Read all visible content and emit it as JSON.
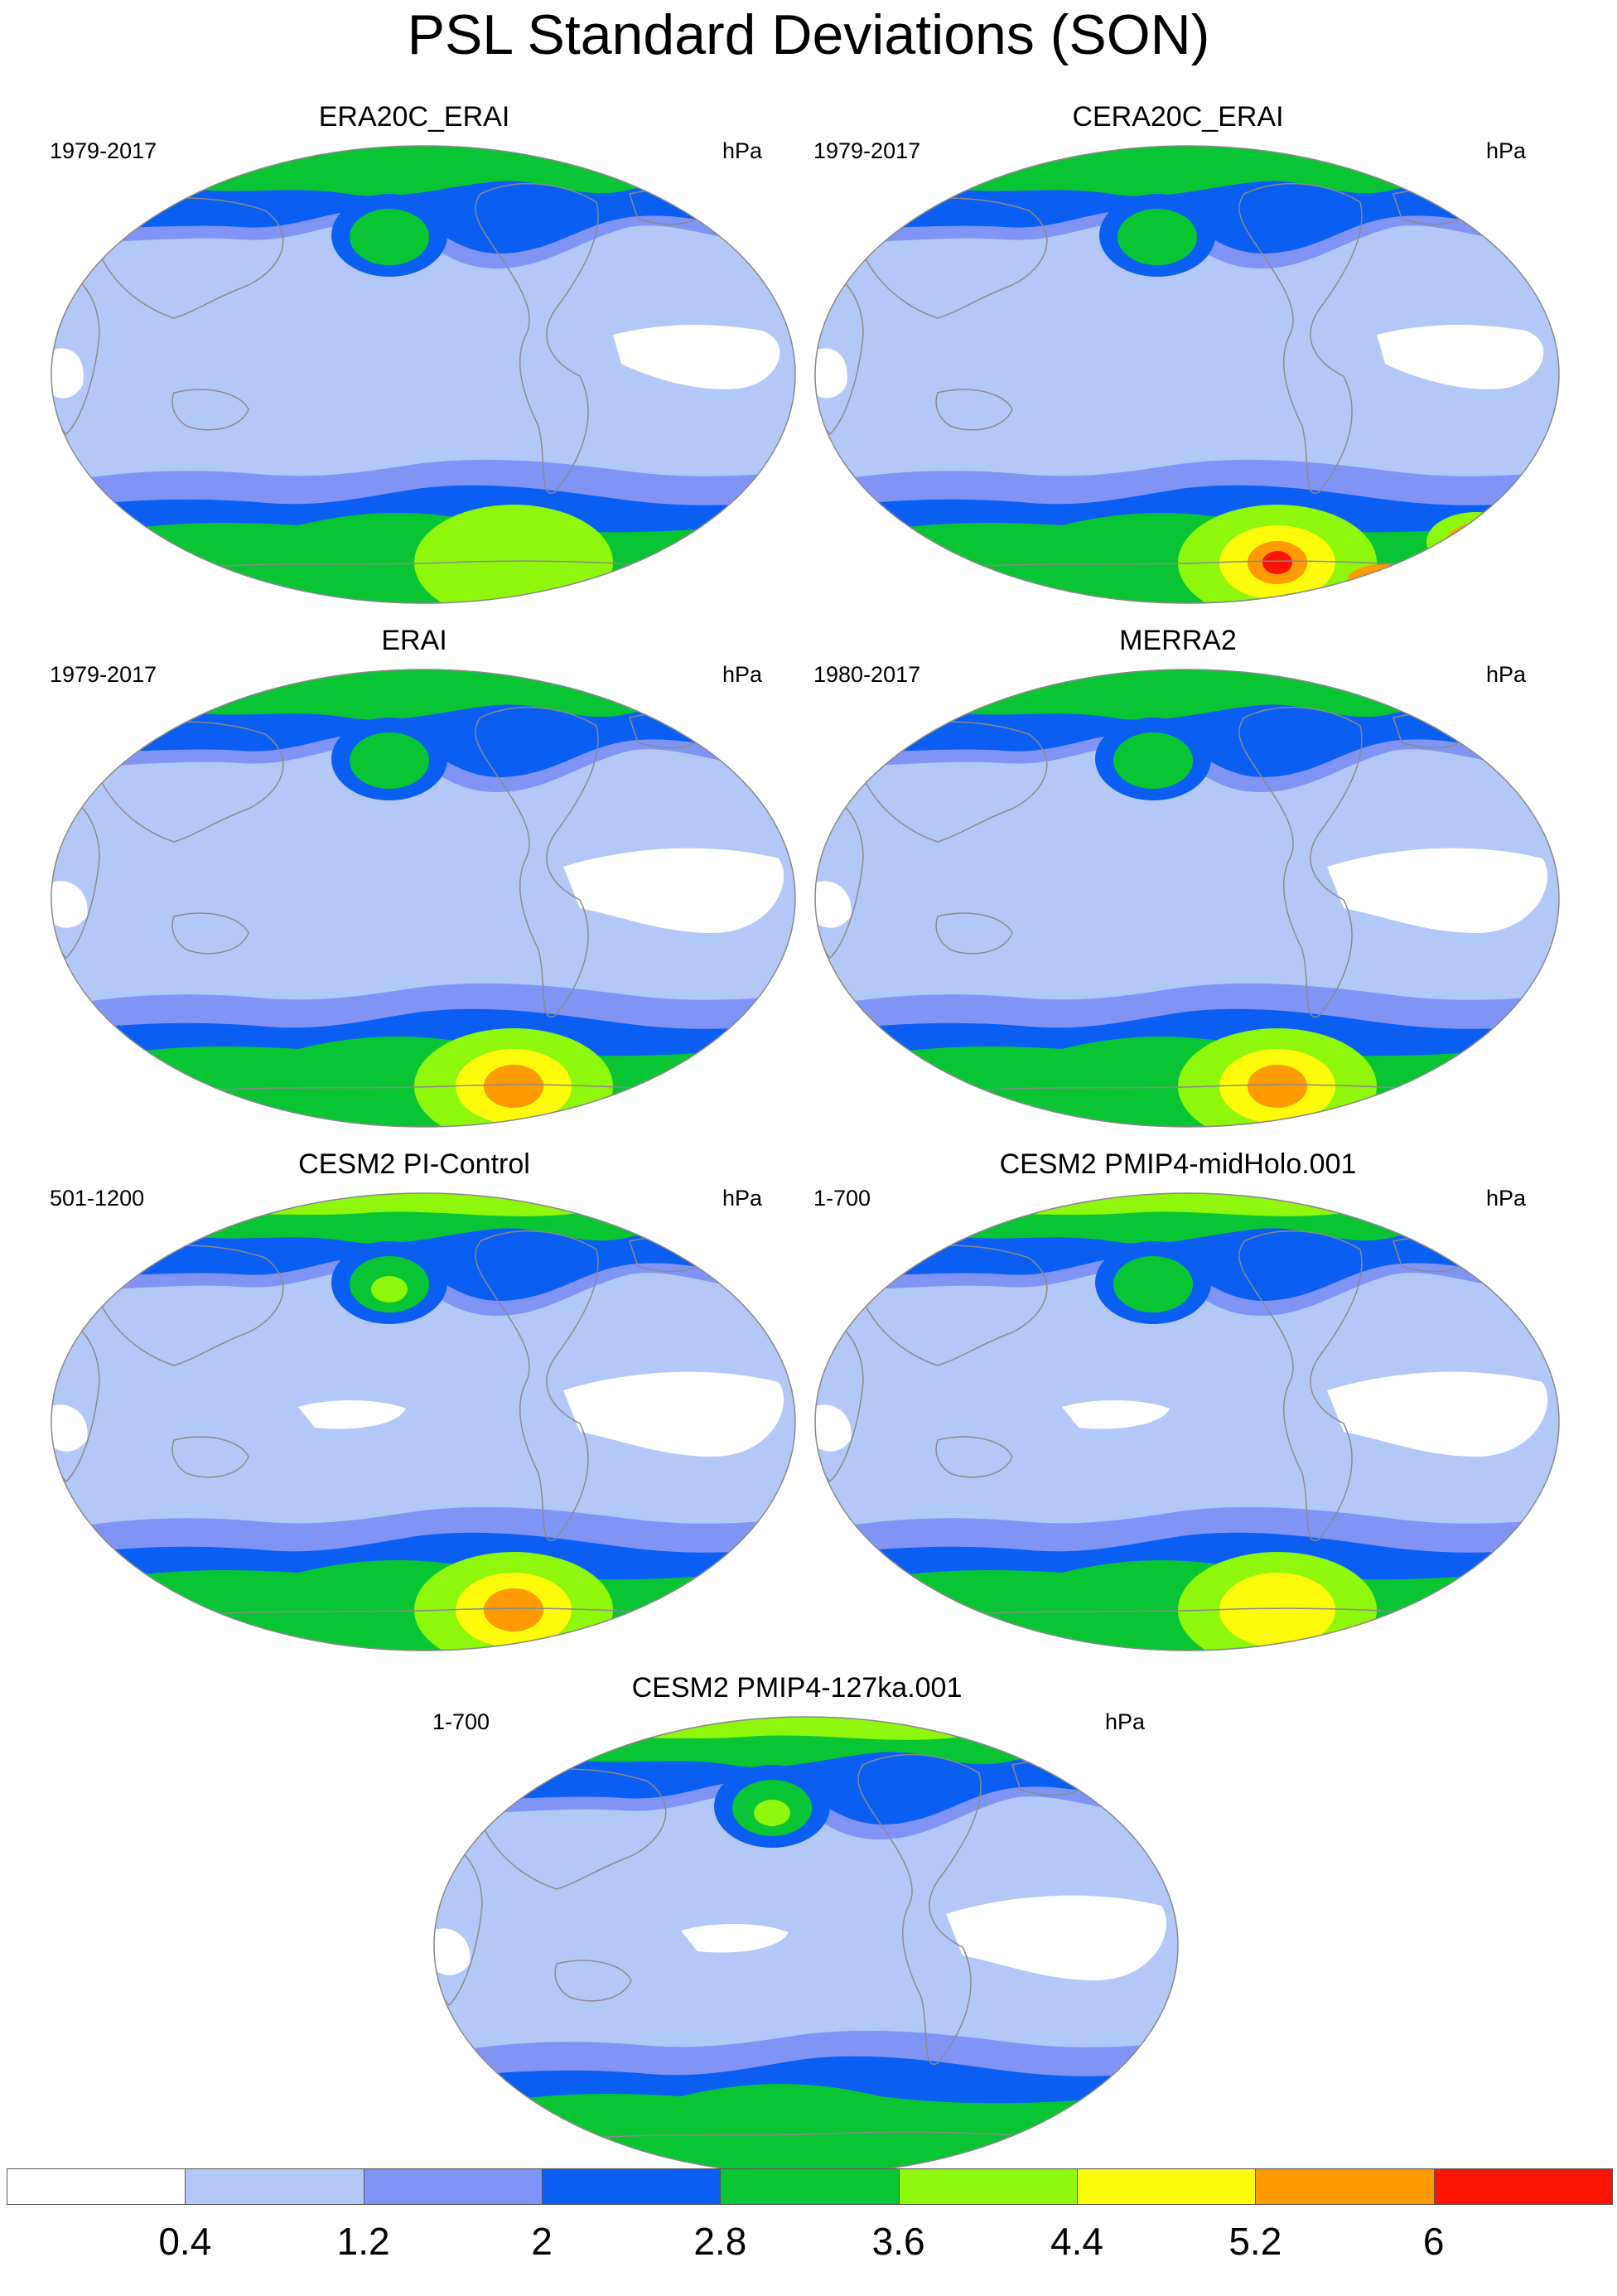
{
  "title": "PSL Standard Deviations (SON)",
  "panels": [
    {
      "title": "ERA20C_ERAI",
      "years": "1979-2017",
      "units": "hPa",
      "variant": "a"
    },
    {
      "title": "CERA20C_ERAI",
      "years": "1979-2017",
      "units": "hPa",
      "variant": "b"
    },
    {
      "title": "ERAI",
      "years": "1979-2017",
      "units": "hPa",
      "variant": "c"
    },
    {
      "title": "MERRA2",
      "years": "1980-2017",
      "units": "hPa",
      "variant": "c"
    },
    {
      "title": "CESM2 PI-Control",
      "years": "501-1200",
      "units": "hPa",
      "variant": "d"
    },
    {
      "title": "CESM2 PMIP4-midHolo.001",
      "years": "1-700",
      "units": "hPa",
      "variant": "e"
    },
    {
      "title": "CESM2 PMIP4-127ka.001",
      "years": "1-700",
      "units": "hPa",
      "variant": "f"
    }
  ],
  "colorbar": {
    "levels": [
      "0.4",
      "1.2",
      "2",
      "2.8",
      "3.6",
      "4.4",
      "5.2",
      "6"
    ],
    "colors": [
      "#ffffff",
      "#b4c8f8",
      "#7f94f5",
      "#0a5ef2",
      "#09c534",
      "#8ef70b",
      "#fdfb0a",
      "#fd9a04",
      "#fb1404"
    ]
  },
  "map_colors": {
    "land_outline": "#8a8a8a",
    "outline": "#888888"
  }
}
